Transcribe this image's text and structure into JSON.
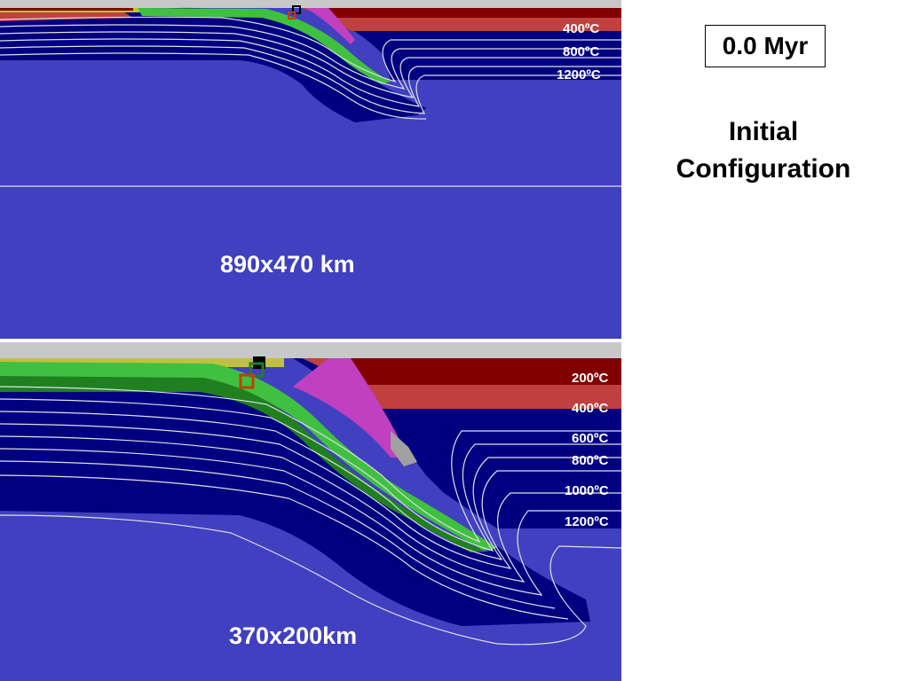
{
  "time_box": "0.0 Myr",
  "caption": {
    "line1": "Initial",
    "line2": "Configuration"
  },
  "top_panel": {
    "dimension_label": "890x470 km",
    "isotherms": [
      "400ºC",
      "800ºC",
      "1200ºC"
    ]
  },
  "bottom_panel": {
    "dimension_label": "370x200km",
    "isotherms": [
      "200ºC",
      "400ºC",
      "600ºC",
      "800ºC",
      "1000ºC",
      "1200ºC"
    ]
  },
  "colors": {
    "asthenosphere": "#4040c0",
    "lithosphere": "#000080",
    "upper_crust": "#800000",
    "lower_crust": "#c04040",
    "oceanic_crust": "#40c040",
    "oceanic_crust_dark": "#208020",
    "sediments": "#c0c040",
    "accretion_wedge": "#c040c0",
    "air": "#c8c8c8",
    "isotherm": "#e0e0e0"
  }
}
